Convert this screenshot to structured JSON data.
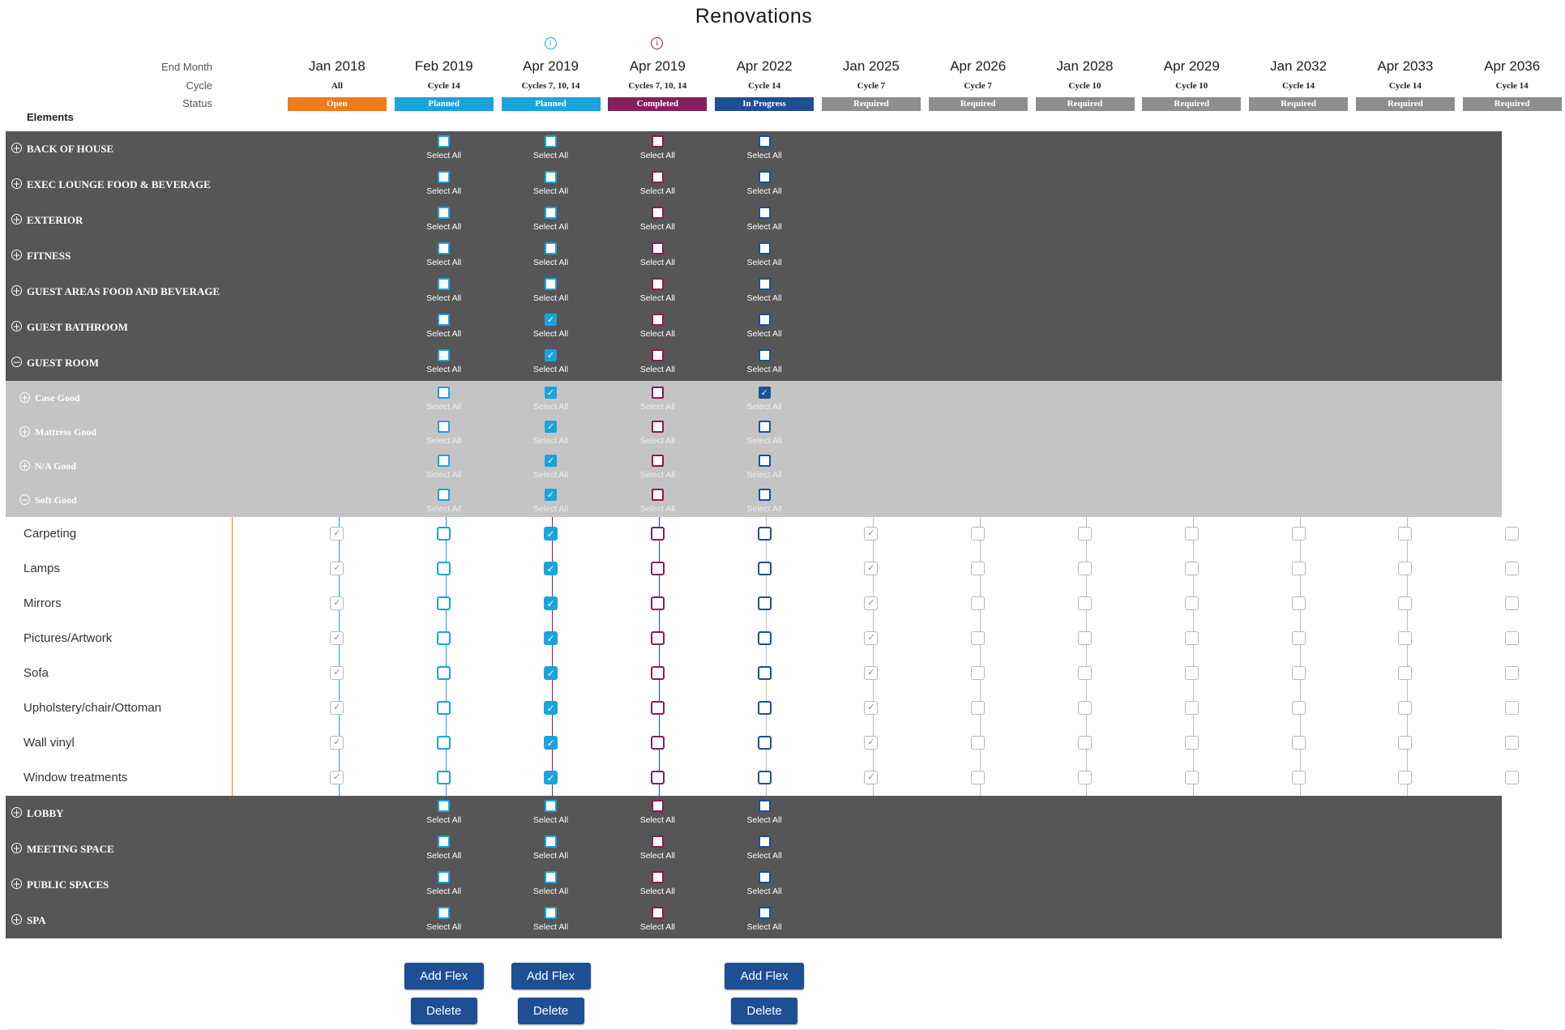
{
  "title": "Renovations",
  "header_labels": {
    "end_month": "End Month",
    "cycle": "Cycle",
    "status": "Status",
    "elements": "Elements"
  },
  "columns": [
    {
      "month": "Jan 2018",
      "cycle": "All",
      "status": "Open",
      "status_color": "#ef7b1f",
      "info": false
    },
    {
      "month": "Feb 2019",
      "cycle": "Cycle 14",
      "status": "Planned",
      "status_color": "#1aa3dd",
      "info": false
    },
    {
      "month": "Apr 2019",
      "cycle": "Cycles 7, 10, 14",
      "status": "Planned",
      "status_color": "#1aa3dd",
      "info": true,
      "info_color": "#1aa3dd"
    },
    {
      "month": "Apr 2019",
      "cycle": "Cycles 7, 10, 14",
      "status": "Completed",
      "status_color": "#861f5e",
      "info": true,
      "info_color": "#8a1a55"
    },
    {
      "month": "Apr 2022",
      "cycle": "Cycle 14",
      "status": "In Progress",
      "status_color": "#1d4f95",
      "info": false
    },
    {
      "month": "Jan 2025",
      "cycle": "Cycle 7",
      "status": "Required",
      "status_color": "#8e8e8e",
      "info": false
    },
    {
      "month": "Apr 2026",
      "cycle": "Cycle 7",
      "status": "Required",
      "status_color": "#8e8e8e",
      "info": false
    },
    {
      "month": "Jan 2028",
      "cycle": "Cycle 10",
      "status": "Required",
      "status_color": "#8e8e8e",
      "info": false
    },
    {
      "month": "Apr 2029",
      "cycle": "Cycle 10",
      "status": "Required",
      "status_color": "#8e8e8e",
      "info": false
    },
    {
      "month": "Jan 2032",
      "cycle": "Cycle 14",
      "status": "Required",
      "status_color": "#8e8e8e",
      "info": false
    },
    {
      "month": "Apr 2033",
      "cycle": "Cycle 14",
      "status": "Required",
      "status_color": "#8e8e8e",
      "info": false
    },
    {
      "month": "Apr 2036",
      "cycle": "Cycle 14",
      "status": "Required",
      "status_color": "#8e8e8e",
      "info": false
    }
  ],
  "select_all_label": "Select All",
  "categories_top": [
    {
      "label": "BACK OF HOUSE",
      "expanded": false,
      "checked": [
        false,
        false,
        false,
        false
      ]
    },
    {
      "label": "EXEC LOUNGE FOOD & BEVERAGE",
      "expanded": false,
      "checked": [
        false,
        false,
        false,
        false
      ]
    },
    {
      "label": "EXTERIOR",
      "expanded": false,
      "checked": [
        false,
        false,
        false,
        false
      ]
    },
    {
      "label": "FITNESS",
      "expanded": false,
      "checked": [
        false,
        false,
        false,
        false
      ]
    },
    {
      "label": "GUEST AREAS FOOD AND BEVERAGE",
      "expanded": false,
      "checked": [
        false,
        false,
        false,
        false
      ]
    },
    {
      "label": "GUEST BATHROOM",
      "expanded": false,
      "checked": [
        false,
        true,
        false,
        false
      ]
    },
    {
      "label": "GUEST ROOM",
      "expanded": true,
      "checked": [
        false,
        true,
        false,
        false
      ]
    }
  ],
  "subcategories": [
    {
      "label": "Case Good",
      "expanded": false,
      "checked": [
        false,
        true,
        false,
        true
      ]
    },
    {
      "label": "Mattress Good",
      "expanded": false,
      "checked": [
        false,
        true,
        false,
        false
      ]
    },
    {
      "label": "N/A Good",
      "expanded": false,
      "checked": [
        false,
        true,
        false,
        false
      ]
    },
    {
      "label": "Soft Good",
      "expanded": true,
      "checked": [
        false,
        true,
        false,
        false
      ]
    }
  ],
  "items": [
    {
      "label": "Carpeting",
      "checked": [
        true,
        false,
        true,
        false,
        false,
        true,
        false,
        false,
        false,
        false,
        false,
        false
      ]
    },
    {
      "label": "Lamps",
      "checked": [
        true,
        false,
        true,
        false,
        false,
        true,
        false,
        false,
        false,
        false,
        false,
        false
      ]
    },
    {
      "label": "Mirrors",
      "checked": [
        true,
        false,
        true,
        false,
        false,
        true,
        false,
        false,
        false,
        false,
        false,
        false
      ]
    },
    {
      "label": "Pictures/Artwork",
      "checked": [
        true,
        false,
        true,
        false,
        false,
        true,
        false,
        false,
        false,
        false,
        false,
        false
      ]
    },
    {
      "label": "Sofa",
      "checked": [
        true,
        false,
        true,
        false,
        false,
        true,
        false,
        false,
        false,
        false,
        false,
        false
      ]
    },
    {
      "label": "Upholstery/chair/Ottoman",
      "checked": [
        true,
        false,
        true,
        false,
        false,
        true,
        false,
        false,
        false,
        false,
        false,
        false
      ]
    },
    {
      "label": "Wall vinyl",
      "checked": [
        true,
        false,
        true,
        false,
        false,
        true,
        false,
        false,
        false,
        false,
        false,
        false
      ]
    },
    {
      "label": "Window treatments",
      "checked": [
        true,
        false,
        true,
        false,
        false,
        true,
        false,
        false,
        false,
        false,
        false,
        false
      ]
    }
  ],
  "categories_bottom": [
    {
      "label": "LOBBY",
      "expanded": false,
      "checked": [
        false,
        false,
        false,
        false
      ]
    },
    {
      "label": "MEETING SPACE",
      "expanded": false,
      "checked": [
        false,
        false,
        false,
        false
      ]
    },
    {
      "label": "PUBLIC SPACES",
      "expanded": false,
      "checked": [
        false,
        false,
        false,
        false
      ]
    },
    {
      "label": "SPA",
      "expanded": false,
      "checked": [
        false,
        false,
        false,
        false
      ]
    }
  ],
  "buttons": {
    "add_flex": "Add Flex",
    "delete": "Delete",
    "columns": [
      1,
      2,
      4
    ]
  },
  "colors": {
    "dark_band": "#565656",
    "light_band": "#c4c4c4",
    "button": "#1d4f95"
  }
}
